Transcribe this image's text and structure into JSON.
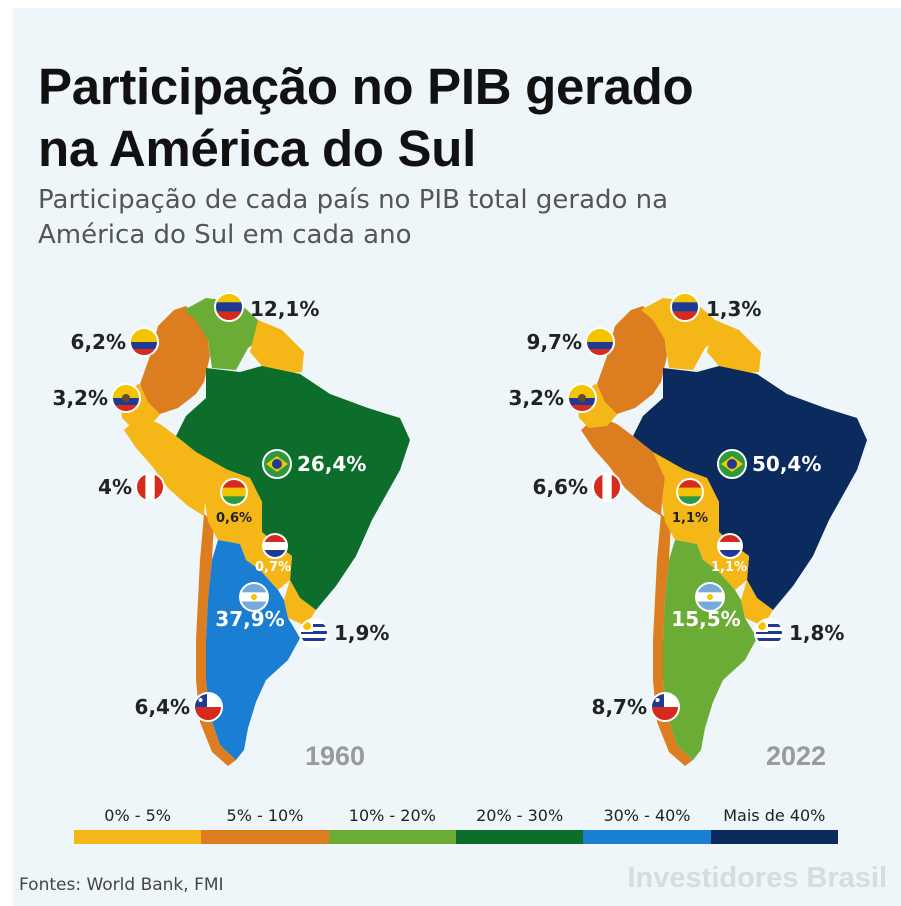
{
  "title_lines": [
    "Participação no PIB gerado",
    "na América do Sul"
  ],
  "subtitle_lines": [
    "Participação de cada país no PIB total gerado na",
    "América do Sul em cada ano"
  ],
  "colors": {
    "bin_0_5": "#f5b617",
    "bin_5_10": "#dc7e1f",
    "bin_10_20": "#6aac36",
    "bin_20_30": "#0d6e2b",
    "bin_30_40": "#1a7ed3",
    "bin_40_plus": "#0b2a5d"
  },
  "maps": [
    {
      "year": "1960",
      "values": {
        "venezuela": "12,1%",
        "colombia": "6,2%",
        "ecuador": "3,2%",
        "peru": "4%",
        "brazil": "26,4%",
        "bolivia": "0,6%",
        "paraguay": "0,7%",
        "argentina": "37,9%",
        "uruguay": "1,9%",
        "chile": "6,4%"
      }
    },
    {
      "year": "2022",
      "values": {
        "venezuela": "1,3%",
        "colombia": "9,7%",
        "ecuador": "3,2%",
        "peru": "6,6%",
        "brazil": "50,4%",
        "bolivia": "1,1%",
        "paraguay": "1,1%",
        "argentina": "15,5%",
        "uruguay": "1,8%",
        "chile": "8,7%"
      }
    }
  ],
  "legend": [
    {
      "label": "0% - 5%",
      "color": "#f5b617"
    },
    {
      "label": "5% - 10%",
      "color": "#dc7e1f"
    },
    {
      "label": "10% - 20%",
      "color": "#6aac36"
    },
    {
      "label": "20% - 30%",
      "color": "#0d6e2b"
    },
    {
      "label": "30% - 40%",
      "color": "#1a7ed3"
    },
    {
      "label": "Mais de 40%",
      "color": "#0b2a5d"
    }
  ],
  "source": "Fontes: World Bank, FMI",
  "brand": "Investidores Brasil"
}
